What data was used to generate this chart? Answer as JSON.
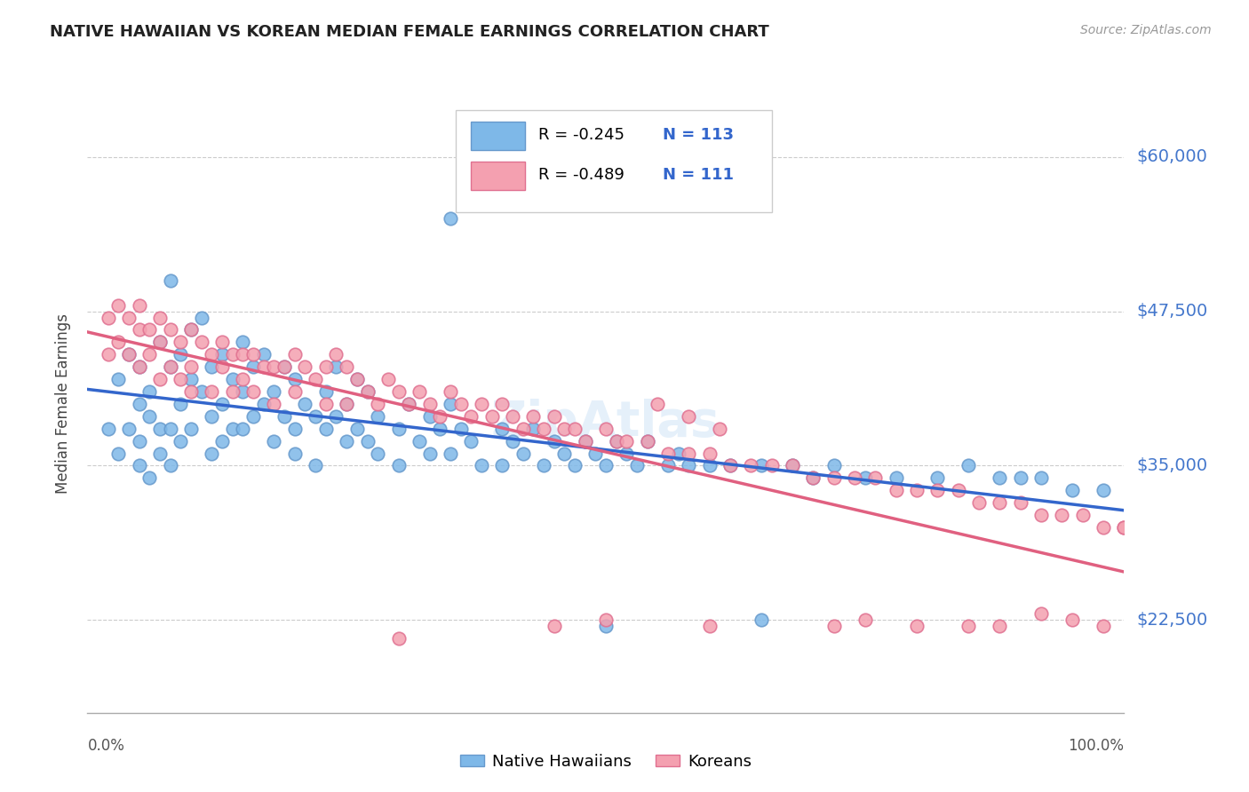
{
  "title": "NATIVE HAWAIIAN VS KOREAN MEDIAN FEMALE EARNINGS CORRELATION CHART",
  "source": "Source: ZipAtlas.com",
  "ylabel": "Median Female Earnings",
  "xlim": [
    0,
    1
  ],
  "ylim": [
    15000,
    65000
  ],
  "yticks": [
    22500,
    35000,
    47500,
    60000
  ],
  "ytick_labels": [
    "$22,500",
    "$35,000",
    "$47,500",
    "$60,000"
  ],
  "background_color": "#ffffff",
  "grid_color": "#cccccc",
  "watermark_text": "ZipAtlas",
  "hawaiian_color": "#7EB8E8",
  "korean_color": "#F4A0B0",
  "hawaiian_edge_color": "#6699CC",
  "korean_edge_color": "#E07090",
  "trend_hawaiian_color": "#3366CC",
  "trend_korean_color": "#E06080",
  "legend_hawaiian_label": "Native Hawaiians",
  "legend_korean_label": "Koreans",
  "R_hawaiian": -0.245,
  "N_hawaiian": 113,
  "R_korean": -0.489,
  "N_korean": 111,
  "hawaiian_x": [
    0.02,
    0.03,
    0.03,
    0.04,
    0.04,
    0.05,
    0.05,
    0.05,
    0.05,
    0.06,
    0.06,
    0.06,
    0.07,
    0.07,
    0.07,
    0.08,
    0.08,
    0.08,
    0.08,
    0.09,
    0.09,
    0.09,
    0.1,
    0.1,
    0.1,
    0.11,
    0.11,
    0.12,
    0.12,
    0.12,
    0.13,
    0.13,
    0.13,
    0.14,
    0.14,
    0.15,
    0.15,
    0.15,
    0.16,
    0.16,
    0.17,
    0.17,
    0.18,
    0.18,
    0.19,
    0.19,
    0.2,
    0.2,
    0.2,
    0.21,
    0.22,
    0.22,
    0.23,
    0.23,
    0.24,
    0.24,
    0.25,
    0.25,
    0.26,
    0.26,
    0.27,
    0.27,
    0.28,
    0.28,
    0.3,
    0.3,
    0.31,
    0.32,
    0.33,
    0.33,
    0.34,
    0.35,
    0.35,
    0.36,
    0.37,
    0.38,
    0.4,
    0.4,
    0.41,
    0.42,
    0.43,
    0.44,
    0.45,
    0.46,
    0.47,
    0.48,
    0.49,
    0.5,
    0.51,
    0.52,
    0.53,
    0.54,
    0.56,
    0.57,
    0.58,
    0.6,
    0.62,
    0.65,
    0.68,
    0.7,
    0.72,
    0.75,
    0.78,
    0.82,
    0.85,
    0.88,
    0.9,
    0.92,
    0.95,
    0.98,
    0.35,
    0.5,
    0.65
  ],
  "hawaiian_y": [
    38000,
    42000,
    36000,
    44000,
    38000,
    40000,
    43000,
    37000,
    35000,
    41000,
    39000,
    34000,
    45000,
    38000,
    36000,
    50000,
    43000,
    38000,
    35000,
    44000,
    40000,
    37000,
    46000,
    42000,
    38000,
    47000,
    41000,
    39000,
    36000,
    43000,
    44000,
    40000,
    37000,
    42000,
    38000,
    45000,
    41000,
    38000,
    43000,
    39000,
    44000,
    40000,
    41000,
    37000,
    43000,
    39000,
    42000,
    38000,
    36000,
    40000,
    39000,
    35000,
    41000,
    38000,
    43000,
    39000,
    40000,
    37000,
    42000,
    38000,
    41000,
    37000,
    39000,
    36000,
    38000,
    35000,
    40000,
    37000,
    39000,
    36000,
    38000,
    40000,
    36000,
    38000,
    37000,
    35000,
    38000,
    35000,
    37000,
    36000,
    38000,
    35000,
    37000,
    36000,
    35000,
    37000,
    36000,
    35000,
    37000,
    36000,
    35000,
    37000,
    35000,
    36000,
    35000,
    35000,
    35000,
    35000,
    35000,
    34000,
    35000,
    34000,
    34000,
    34000,
    35000,
    34000,
    34000,
    34000,
    33000,
    33000,
    55000,
    22000,
    22500
  ],
  "korean_x": [
    0.02,
    0.02,
    0.03,
    0.03,
    0.04,
    0.04,
    0.05,
    0.05,
    0.05,
    0.06,
    0.06,
    0.07,
    0.07,
    0.07,
    0.08,
    0.08,
    0.09,
    0.09,
    0.1,
    0.1,
    0.1,
    0.11,
    0.12,
    0.12,
    0.13,
    0.13,
    0.14,
    0.14,
    0.15,
    0.15,
    0.16,
    0.16,
    0.17,
    0.18,
    0.18,
    0.19,
    0.2,
    0.2,
    0.21,
    0.22,
    0.23,
    0.23,
    0.24,
    0.25,
    0.25,
    0.26,
    0.27,
    0.28,
    0.29,
    0.3,
    0.31,
    0.32,
    0.33,
    0.34,
    0.35,
    0.36,
    0.37,
    0.38,
    0.39,
    0.4,
    0.41,
    0.42,
    0.43,
    0.44,
    0.45,
    0.46,
    0.47,
    0.48,
    0.5,
    0.51,
    0.52,
    0.54,
    0.56,
    0.58,
    0.6,
    0.62,
    0.64,
    0.66,
    0.68,
    0.7,
    0.72,
    0.74,
    0.76,
    0.78,
    0.8,
    0.82,
    0.84,
    0.86,
    0.88,
    0.9,
    0.92,
    0.94,
    0.96,
    0.98,
    1.0,
    0.3,
    0.45,
    0.5,
    0.6,
    0.72,
    0.75,
    0.8,
    0.85,
    0.88,
    0.92,
    0.95,
    0.98,
    1.0,
    0.55,
    0.58,
    0.61
  ],
  "korean_y": [
    47000,
    44000,
    48000,
    45000,
    47000,
    44000,
    46000,
    48000,
    43000,
    46000,
    44000,
    47000,
    45000,
    42000,
    46000,
    43000,
    45000,
    42000,
    46000,
    43000,
    41000,
    45000,
    44000,
    41000,
    45000,
    43000,
    44000,
    41000,
    44000,
    42000,
    44000,
    41000,
    43000,
    43000,
    40000,
    43000,
    44000,
    41000,
    43000,
    42000,
    43000,
    40000,
    44000,
    43000,
    40000,
    42000,
    41000,
    40000,
    42000,
    41000,
    40000,
    41000,
    40000,
    39000,
    41000,
    40000,
    39000,
    40000,
    39000,
    40000,
    39000,
    38000,
    39000,
    38000,
    39000,
    38000,
    38000,
    37000,
    38000,
    37000,
    37000,
    37000,
    36000,
    36000,
    36000,
    35000,
    35000,
    35000,
    35000,
    34000,
    34000,
    34000,
    34000,
    33000,
    33000,
    33000,
    33000,
    32000,
    32000,
    32000,
    31000,
    31000,
    31000,
    30000,
    30000,
    21000,
    22000,
    22500,
    22000,
    22000,
    22500,
    22000,
    22000,
    22000,
    23000,
    22500,
    22000,
    30000,
    40000,
    39000,
    38000
  ]
}
